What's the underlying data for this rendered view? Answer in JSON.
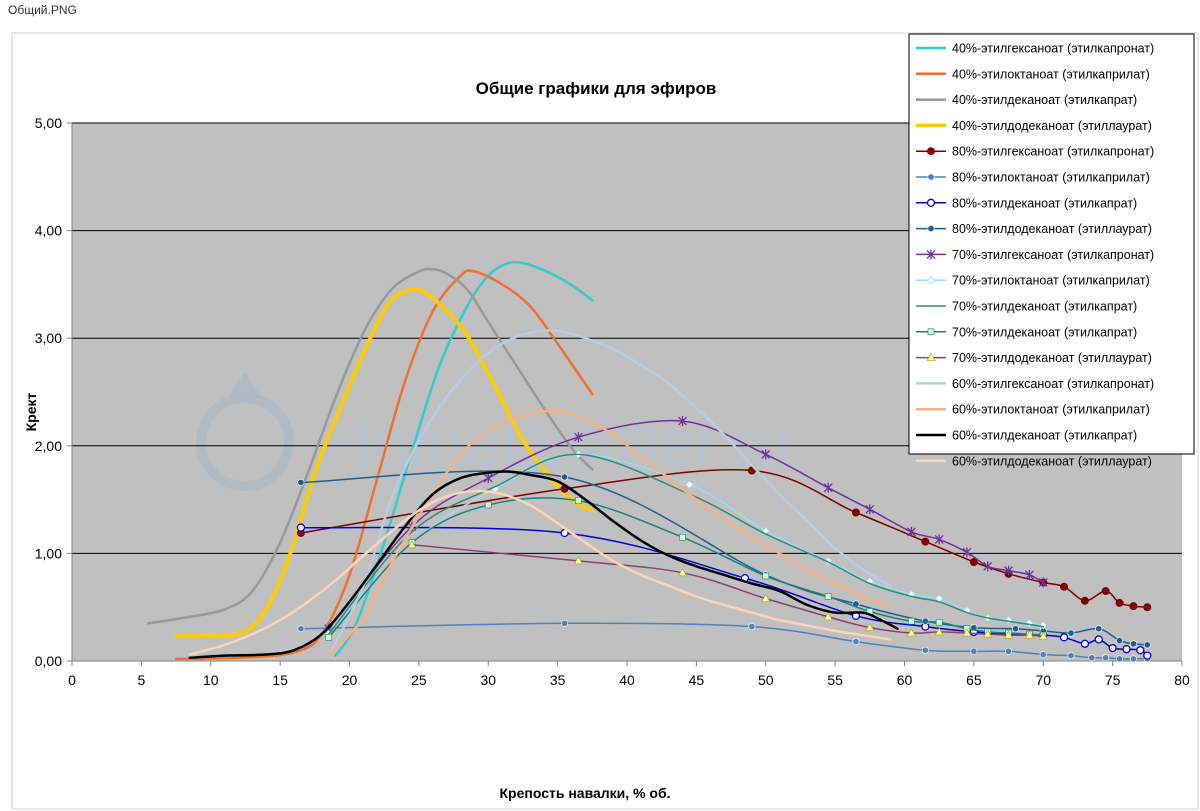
{
  "window": {
    "title": "Общий.PNG"
  },
  "watermark": "HomeDistiller.ru",
  "chart_data": {
    "type": "line",
    "title": "Общие графики для эфиров",
    "xlabel": "Крепость навалки, % об.",
    "ylabel": "Крект",
    "xlim": [
      0,
      80
    ],
    "ylim": [
      0,
      5
    ],
    "x_ticks": [
      0,
      5,
      10,
      15,
      20,
      25,
      30,
      35,
      40,
      45,
      50,
      55,
      60,
      65,
      70,
      75,
      80
    ],
    "y_ticks": [
      0,
      1,
      2,
      3,
      4,
      5
    ],
    "x_tick_labels": [
      "0",
      "5",
      "10",
      "15",
      "20",
      "25",
      "30",
      "35",
      "40",
      "45",
      "50",
      "55",
      "60",
      "65",
      "70",
      "75",
      "80"
    ],
    "y_tick_labels": [
      "0,00",
      "1,00",
      "2,00",
      "3,00",
      "4,00",
      "5,00"
    ],
    "grid": "horizontal",
    "legend_position": "top-right",
    "plot_background": "#c0c0c0",
    "series": [
      {
        "name": "40%-этилгексаноат  (этилкапронат)",
        "color": "#33cccc",
        "width": 2.5,
        "marker": "none",
        "x": [
          19,
          20.5,
          22.5,
          24.5,
          26.5,
          28.5,
          30,
          31.5,
          33,
          35,
          36.5,
          37.5
        ],
        "y": [
          0.05,
          0.35,
          1.1,
          1.95,
          2.75,
          3.3,
          3.58,
          3.7,
          3.68,
          3.57,
          3.45,
          3.35
        ]
      },
      {
        "name": "40%-этилоктаноат  (этилкаприлат)",
        "color": "#f07030",
        "width": 2.5,
        "marker": "none",
        "x": [
          7.5,
          12,
          16,
          18,
          20,
          22,
          24,
          26,
          28,
          29,
          31,
          33,
          35,
          37.5
        ],
        "y": [
          0.02,
          0.03,
          0.08,
          0.25,
          0.8,
          1.7,
          2.6,
          3.25,
          3.58,
          3.62,
          3.5,
          3.3,
          2.95,
          2.48
        ]
      },
      {
        "name": "40%-этилдеканоат  (этилкапрат)",
        "color": "#999999",
        "width": 2.5,
        "marker": "none",
        "x": [
          5.5,
          8,
          11,
          13,
          15,
          17,
          19,
          21,
          23,
          25,
          26,
          27,
          28.5,
          30,
          32,
          34,
          36,
          37.5
        ],
        "y": [
          0.35,
          0.4,
          0.48,
          0.65,
          1.1,
          1.75,
          2.45,
          3.05,
          3.45,
          3.62,
          3.64,
          3.6,
          3.45,
          3.15,
          2.75,
          2.35,
          1.98,
          1.78
        ]
      },
      {
        "name": "40%-этилдодеканоат  (этиллаурат)",
        "color": "#ffcc00",
        "width": 4,
        "marker": "none",
        "x": [
          7.5,
          9.5,
          11.5,
          13,
          14.5,
          16,
          17.5,
          19.5,
          21.5,
          23,
          24.5,
          25.5,
          27,
          28.5,
          30.5,
          32.5,
          34.5,
          36,
          37.5
        ],
        "y": [
          0.23,
          0.24,
          0.24,
          0.32,
          0.6,
          1.1,
          1.75,
          2.4,
          3.0,
          3.35,
          3.45,
          3.42,
          3.25,
          3.02,
          2.55,
          2.05,
          1.7,
          1.5,
          1.4
        ]
      },
      {
        "name": "80%-этилгексаноат  (этилкапронат)",
        "color": "#800000",
        "width": 1.5,
        "marker": "circle",
        "x": [
          16.5,
          35.5,
          49,
          56.5,
          61.5,
          65,
          67.5,
          70,
          71.5,
          73,
          74.5,
          75.5,
          76.5,
          77.5
        ],
        "y": [
          1.19,
          1.6,
          1.77,
          1.38,
          1.11,
          0.92,
          0.81,
          0.73,
          0.69,
          0.56,
          0.65,
          0.54,
          0.51,
          0.5
        ]
      },
      {
        "name": "80%-этилоктаноат  (этилкаприлат)",
        "color": "#4f81bd",
        "width": 1.5,
        "marker": "circle-small",
        "x": [
          16.5,
          35.5,
          49,
          56.5,
          61.5,
          65,
          67.5,
          70,
          72,
          73.5,
          74.5,
          75.5,
          76.5,
          77.5
        ],
        "y": [
          0.3,
          0.35,
          0.32,
          0.18,
          0.1,
          0.09,
          0.09,
          0.06,
          0.05,
          0.03,
          0.03,
          0.02,
          0.02,
          0.02
        ]
      },
      {
        "name": "80%-этилдеканоат  (этилкапрат)",
        "color": "#0000dd",
        "width": 1.5,
        "marker": "circle-open",
        "x": [
          16.5,
          35.5,
          48.5,
          56.5,
          61.5,
          65,
          67.5,
          70,
          71.5,
          73,
          74,
          75,
          76,
          77,
          77.5
        ],
        "y": [
          1.24,
          1.19,
          0.77,
          0.42,
          0.32,
          0.27,
          0.25,
          0.24,
          0.22,
          0.16,
          0.2,
          0.12,
          0.11,
          0.1,
          0.05
        ]
      },
      {
        "name": "80%-этилдодеканоат  (этиллаурат)",
        "color": "#1f5f8f",
        "width": 1.5,
        "marker": "circle-small",
        "x": [
          16.5,
          35.5,
          50,
          56.5,
          61.5,
          65,
          68,
          70,
          72,
          74,
          75.5,
          76.5,
          77.5
        ],
        "y": [
          1.66,
          1.71,
          0.8,
          0.53,
          0.37,
          0.31,
          0.3,
          0.28,
          0.26,
          0.3,
          0.19,
          0.16,
          0.15
        ]
      },
      {
        "name": "70%-этилгексаноат  (этилкапронат)",
        "color": "#7030a0",
        "width": 1.5,
        "marker": "star",
        "x": [
          18.5,
          24.5,
          30,
          36.5,
          44,
          50,
          54.5,
          57.5,
          60.5,
          62.5,
          64.5,
          66,
          67.5,
          69,
          70
        ],
        "y": [
          0.3,
          1.25,
          1.7,
          2.08,
          2.23,
          1.92,
          1.61,
          1.41,
          1.2,
          1.13,
          1.01,
          0.88,
          0.84,
          0.8,
          0.73
        ]
      },
      {
        "name": "70%-этилоктаноат  (этилкаприлат)",
        "color": "#99ddee",
        "width": 1.5,
        "marker": "diamond",
        "x": [
          18.5,
          24.5,
          30.5,
          36.5,
          44.5,
          50,
          54.5,
          57.5,
          60.5,
          62.5,
          64.5,
          66,
          67.5,
          69,
          70
        ],
        "y": [
          0.25,
          1.1,
          1.6,
          1.92,
          1.64,
          1.21,
          0.93,
          0.74,
          0.62,
          0.58,
          0.47,
          0.4,
          0.38,
          0.35,
          0.33
        ]
      },
      {
        "name": "70%-этилдеканоат  (этилкапрат)",
        "color": "#2e8b7a",
        "width": 1.5,
        "marker": "none",
        "x": [
          18.5,
          24.5,
          30.5,
          36.5,
          44.5,
          50,
          54.5,
          57.5,
          60.5,
          62.5,
          64.5,
          66,
          67.5,
          69,
          70
        ],
        "y": [
          0.25,
          1.2,
          1.62,
          1.92,
          1.55,
          1.18,
          0.92,
          0.72,
          0.6,
          0.55,
          0.45,
          0.4,
          0.37,
          0.34,
          0.32
        ]
      },
      {
        "name": "70%-этилдеканоат  (этилкапрат)",
        "color": "#1a8080",
        "width": 1.5,
        "marker": "square",
        "x": [
          18.5,
          24.5,
          30,
          36.5,
          44,
          50,
          54.5,
          57.5,
          60.5,
          62.5,
          64.5,
          66,
          67.5,
          69,
          70
        ],
        "y": [
          0.22,
          1.1,
          1.45,
          1.49,
          1.15,
          0.79,
          0.6,
          0.46,
          0.37,
          0.36,
          0.3,
          0.27,
          0.26,
          0.25,
          0.24
        ]
      },
      {
        "name": "70%-этилдодеканоат  (этиллаурат)",
        "color": "#904070",
        "width": 1.5,
        "marker": "triangle",
        "x": [
          24.5,
          36.5,
          44,
          50,
          54.5,
          57.5,
          60.5,
          62.5,
          64.5,
          66,
          67.5,
          69,
          70
        ],
        "y": [
          1.08,
          0.93,
          0.82,
          0.58,
          0.41,
          0.31,
          0.26,
          0.27,
          0.26,
          0.25,
          0.24,
          0.24,
          0.23
        ]
      },
      {
        "name": "60%-этилгексаноат  (этилкапронат)",
        "color": "#b8cce4",
        "width": 2.5,
        "marker": "none",
        "x": [
          18.5,
          21,
          23,
          25,
          27,
          29,
          31,
          33,
          35,
          37,
          39,
          41,
          43,
          45,
          47,
          49,
          51,
          53,
          55,
          57,
          59
        ],
        "y": [
          0.05,
          0.7,
          1.5,
          2.05,
          2.45,
          2.75,
          2.95,
          3.05,
          3.07,
          3.0,
          2.9,
          2.75,
          2.58,
          2.35,
          2.1,
          1.82,
          1.55,
          1.3,
          1.05,
          0.85,
          0.7
        ]
      },
      {
        "name": "60%-этилоктаноат  (этилкаприлат)",
        "color": "#f4b183",
        "width": 2.5,
        "marker": "none",
        "x": [
          18.5,
          21,
          23,
          25,
          27,
          29,
          31,
          33,
          35,
          37,
          39,
          41,
          43,
          45,
          47,
          49,
          51,
          53,
          55,
          57,
          59
        ],
        "y": [
          0.05,
          0.4,
          0.9,
          1.35,
          1.75,
          2.05,
          2.2,
          2.3,
          2.32,
          2.25,
          2.1,
          1.9,
          1.7,
          1.5,
          1.32,
          1.15,
          1.0,
          0.85,
          0.72,
          0.6,
          0.5
        ]
      },
      {
        "name": "60%-этилдеканоат  (этилкапрат)",
        "color": "#000000",
        "width": 2.5,
        "marker": "none",
        "x": [
          8.5,
          11,
          14,
          16,
          18,
          20,
          22,
          24,
          26,
          28,
          30,
          31.5,
          33,
          35,
          37,
          39,
          41,
          43,
          45,
          47,
          49,
          51,
          53,
          55,
          57,
          58,
          59.5
        ],
        "y": [
          0.03,
          0.05,
          0.06,
          0.1,
          0.25,
          0.55,
          0.9,
          1.25,
          1.55,
          1.7,
          1.75,
          1.76,
          1.73,
          1.67,
          1.5,
          1.3,
          1.12,
          0.98,
          0.88,
          0.8,
          0.72,
          0.65,
          0.52,
          0.45,
          0.45,
          0.4,
          0.3
        ]
      },
      {
        "name": "60%-этилдодеканоат  (этиллаурат)",
        "color": "#fcd5b4",
        "width": 2.5,
        "marker": "none",
        "x": [
          8.5,
          11,
          13,
          15,
          17,
          19,
          21,
          23,
          25,
          27,
          29,
          31,
          33,
          35,
          37,
          39,
          41,
          43,
          45,
          47,
          49,
          51,
          53,
          55,
          57,
          59
        ],
        "y": [
          0.06,
          0.15,
          0.25,
          0.38,
          0.55,
          0.75,
          0.98,
          1.2,
          1.4,
          1.53,
          1.58,
          1.55,
          1.45,
          1.28,
          1.1,
          0.93,
          0.8,
          0.7,
          0.6,
          0.52,
          0.45,
          0.38,
          0.33,
          0.28,
          0.24,
          0.2
        ]
      }
    ]
  }
}
